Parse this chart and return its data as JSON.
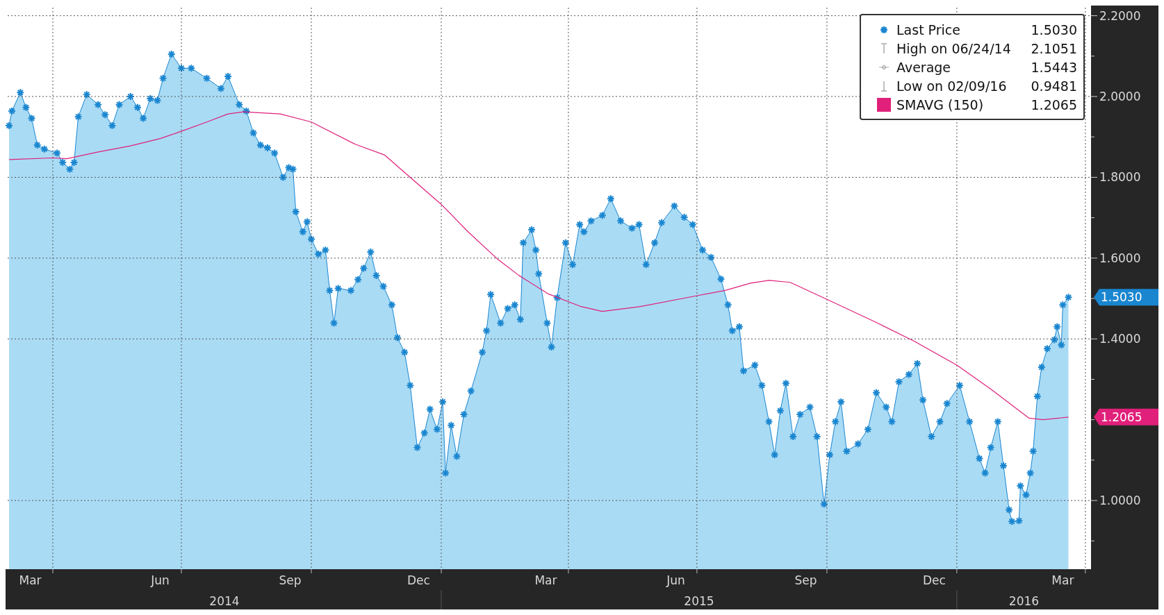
{
  "chart_data": {
    "type": "area",
    "xlim": [
      "2014-02-28",
      "2016-04-05"
    ],
    "ylim": [
      0.83,
      2.22
    ],
    "xticks": [
      {
        "value": "2014-03-16",
        "label": "Mar"
      },
      {
        "value": "2014-04-01",
        "label": null
      },
      {
        "value": "2014-06-16",
        "label": "Jun"
      },
      {
        "value": "2014-07-01",
        "label": null
      },
      {
        "value": "2014-09-16",
        "label": "Sep"
      },
      {
        "value": "2014-10-01",
        "label": null
      },
      {
        "value": "2014-12-16",
        "label": "Dec"
      },
      {
        "value": "2015-01-01",
        "label": null
      },
      {
        "value": "2015-03-16",
        "label": "Mar"
      },
      {
        "value": "2015-04-01",
        "label": null
      },
      {
        "value": "2015-06-16",
        "label": "Jun"
      },
      {
        "value": "2015-07-01",
        "label": null
      },
      {
        "value": "2015-09-16",
        "label": "Sep"
      },
      {
        "value": "2015-10-01",
        "label": null
      },
      {
        "value": "2015-12-16",
        "label": "Dec"
      },
      {
        "value": "2016-01-01",
        "label": null
      },
      {
        "value": "2016-03-16",
        "label": "Mar"
      },
      {
        "value": "2016-04-01",
        "label": null
      }
    ],
    "yticks": [
      {
        "value": 1.0,
        "label": "1.0000"
      },
      {
        "value": 1.2,
        "label": null
      },
      {
        "value": 1.4,
        "label": "1.4000"
      },
      {
        "value": 1.6,
        "label": "1.6000"
      },
      {
        "value": 1.8,
        "label": "1.8000"
      },
      {
        "value": 2.0,
        "label": "2.0000"
      },
      {
        "value": 2.2,
        "label": "2.2000"
      },
      {
        "value": 0.9,
        "label": null
      },
      {
        "value": 1.1,
        "label": null
      },
      {
        "value": 1.3,
        "label": null
      },
      {
        "value": 1.5,
        "label": null
      },
      {
        "value": 1.7,
        "label": null
      },
      {
        "value": 1.9,
        "label": null
      },
      {
        "value": 2.1,
        "label": null
      }
    ],
    "grid": true,
    "legend": "top right",
    "series": [
      {
        "name": "Last Price",
        "color": "#1a86d0",
        "marker": "cross",
        "x": [
          "2014-03-01",
          "2014-03-03",
          "2014-03-09",
          "2014-03-13",
          "2014-03-17",
          "2014-03-21",
          "2014-03-26",
          "2014-04-04",
          "2014-04-08",
          "2014-04-13",
          "2014-04-16",
          "2014-04-19",
          "2014-04-25",
          "2014-05-03",
          "2014-05-08",
          "2014-05-13",
          "2014-05-18",
          "2014-05-26",
          "2014-05-31",
          "2014-06-04",
          "2014-06-09",
          "2014-06-14",
          "2014-06-18",
          "2014-06-24",
          "2014-07-01",
          "2014-07-08",
          "2014-07-19",
          "2014-07-29",
          "2014-08-03",
          "2014-08-11",
          "2014-08-16",
          "2014-08-21",
          "2014-08-26",
          "2014-08-31",
          "2014-09-05",
          "2014-09-11",
          "2014-09-15",
          "2014-09-18",
          "2014-09-20",
          "2014-09-25",
          "2014-09-28",
          "2014-10-01",
          "2014-10-06",
          "2014-10-11",
          "2014-10-14",
          "2014-10-17",
          "2014-10-20",
          "2014-10-29",
          "2014-11-03",
          "2014-11-07",
          "2014-11-12",
          "2014-11-16",
          "2014-11-21",
          "2014-11-27",
          "2014-12-01",
          "2014-12-06",
          "2014-12-10",
          "2014-12-15",
          "2014-12-20",
          "2014-12-24",
          "2014-12-29",
          "2015-01-02",
          "2015-01-04",
          "2015-01-08",
          "2015-01-12",
          "2015-01-17",
          "2015-01-22",
          "2015-01-30",
          "2015-02-02",
          "2015-02-05",
          "2015-02-12",
          "2015-02-17",
          "2015-02-22",
          "2015-02-26",
          "2015-02-28",
          "2015-03-06",
          "2015-03-09",
          "2015-03-11",
          "2015-03-17",
          "2015-03-20",
          "2015-03-24",
          "2015-03-30",
          "2015-04-04",
          "2015-04-09",
          "2015-04-12",
          "2015-04-17",
          "2015-04-25",
          "2015-05-01",
          "2015-05-08",
          "2015-05-16",
          "2015-05-21",
          "2015-05-26",
          "2015-06-01",
          "2015-06-06",
          "2015-06-15",
          "2015-06-22",
          "2015-06-28",
          "2015-07-05",
          "2015-07-11",
          "2015-07-18",
          "2015-07-23",
          "2015-07-26",
          "2015-07-31",
          "2015-08-03",
          "2015-08-11",
          "2015-08-16",
          "2015-08-21",
          "2015-08-25",
          "2015-08-29",
          "2015-09-02",
          "2015-09-07",
          "2015-09-12",
          "2015-09-19",
          "2015-09-24",
          "2015-09-29",
          "2015-10-03",
          "2015-10-07",
          "2015-10-11",
          "2015-10-15",
          "2015-10-23",
          "2015-10-30",
          "2015-11-05",
          "2015-11-12",
          "2015-11-16",
          "2015-11-21",
          "2015-11-28",
          "2015-12-04",
          "2015-12-08",
          "2015-12-14",
          "2015-12-20",
          "2015-12-25",
          "2016-01-03",
          "2016-01-10",
          "2016-01-17",
          "2016-01-21",
          "2016-01-25",
          "2016-01-30",
          "2016-02-03",
          "2016-02-07",
          "2016-02-09",
          "2016-02-14",
          "2016-02-15",
          "2016-02-19",
          "2016-02-22",
          "2016-02-24",
          "2016-02-27",
          "2016-03-01",
          "2016-03-05",
          "2016-03-10",
          "2016-03-12",
          "2016-03-15",
          "2016-03-16",
          "2016-03-20"
        ],
        "values": [
          1.928,
          1.964,
          2.01,
          1.973,
          1.946,
          1.88,
          1.87,
          1.86,
          1.837,
          1.82,
          1.837,
          1.95,
          2.005,
          1.98,
          1.955,
          1.928,
          1.98,
          2.0,
          1.973,
          1.946,
          1.995,
          1.99,
          2.045,
          2.105,
          2.07,
          2.07,
          2.045,
          2.02,
          2.05,
          1.98,
          1.964,
          1.91,
          1.88,
          1.873,
          1.86,
          1.8,
          1.824,
          1.82,
          1.715,
          1.665,
          1.69,
          1.647,
          1.61,
          1.62,
          1.52,
          1.439,
          1.525,
          1.52,
          1.547,
          1.575,
          1.615,
          1.557,
          1.53,
          1.484,
          1.403,
          1.367,
          1.285,
          1.131,
          1.167,
          1.226,
          1.176,
          1.244,
          1.068,
          1.186,
          1.109,
          1.213,
          1.271,
          1.367,
          1.42,
          1.51,
          1.439,
          1.475,
          1.484,
          1.448,
          1.638,
          1.67,
          1.62,
          1.561,
          1.439,
          1.38,
          1.502,
          1.638,
          1.584,
          1.683,
          1.665,
          1.692,
          1.706,
          1.747,
          1.692,
          1.674,
          1.683,
          1.584,
          1.638,
          1.688,
          1.729,
          1.701,
          1.683,
          1.62,
          1.602,
          1.548,
          1.484,
          1.42,
          1.43,
          1.321,
          1.335,
          1.285,
          1.195,
          1.113,
          1.222,
          1.29,
          1.158,
          1.213,
          1.231,
          1.158,
          0.991,
          1.113,
          1.195,
          1.244,
          1.122,
          1.14,
          1.176,
          1.267,
          1.231,
          1.195,
          1.294,
          1.312,
          1.339,
          1.249,
          1.158,
          1.195,
          1.24,
          1.285,
          1.195,
          1.104,
          1.068,
          1.131,
          1.195,
          1.086,
          0.977,
          0.948,
          0.95,
          1.036,
          1.014,
          1.068,
          1.122,
          1.258,
          1.33,
          1.376,
          1.398,
          1.43,
          1.385,
          1.484,
          1.503
        ]
      },
      {
        "name": "SMAVG (150)",
        "type": "line",
        "color": "#e0207a",
        "x": [
          "2014-03-01",
          "2014-04-01",
          "2014-04-11",
          "2014-05-02",
          "2014-05-26",
          "2014-06-16",
          "2014-07-01",
          "2014-07-19",
          "2014-08-03",
          "2014-08-14",
          "2014-09-09",
          "2014-10-01",
          "2014-11-01",
          "2014-11-22",
          "2014-12-10",
          "2015-01-01",
          "2015-01-20",
          "2015-02-10",
          "2015-02-25",
          "2015-03-18",
          "2015-04-10",
          "2015-04-25",
          "2015-05-22",
          "2015-07-01",
          "2015-07-21",
          "2015-08-08",
          "2015-08-21",
          "2015-09-05",
          "2015-10-01",
          "2015-11-06",
          "2015-12-02",
          "2016-01-01",
          "2016-01-25",
          "2016-02-21",
          "2016-03-02",
          "2016-03-20"
        ],
        "values": [
          1.844,
          1.848,
          1.846,
          1.862,
          1.878,
          1.896,
          1.914,
          1.937,
          1.957,
          1.962,
          1.957,
          1.937,
          1.882,
          1.855,
          1.8,
          1.733,
          1.665,
          1.597,
          1.557,
          1.511,
          1.48,
          1.468,
          1.48,
          1.507,
          1.52,
          1.538,
          1.545,
          1.54,
          1.498,
          1.439,
          1.394,
          1.335,
          1.276,
          1.204,
          1.2,
          1.2065
        ]
      }
    ],
    "annotations": [
      "1.5030",
      "1.2065",
      "1.5030",
      "High on 06/24/14",
      "2.1051",
      "Average",
      "1.5443",
      "Low on 02/09/16",
      "0.9481",
      "1.2065",
      "2014",
      "2015",
      "2016"
    ]
  }
}
